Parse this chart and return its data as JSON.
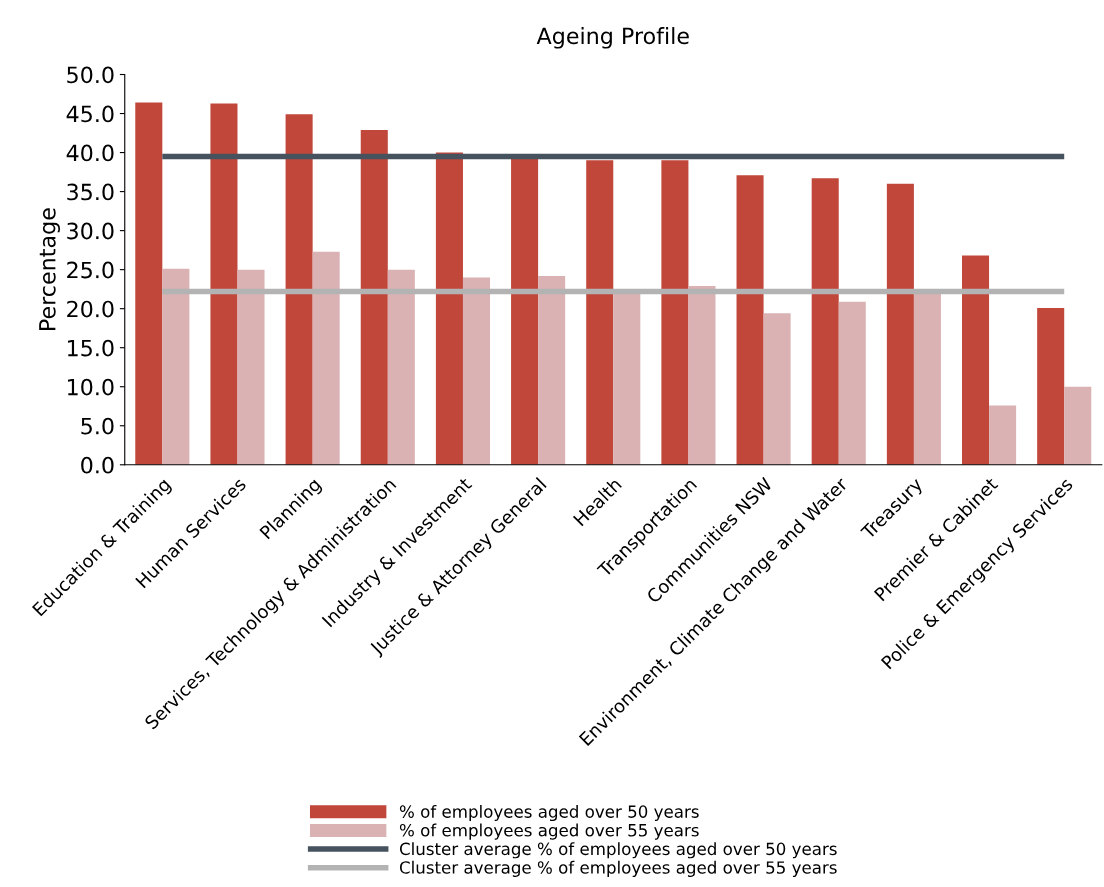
{
  "chart_data": {
    "type": "bar",
    "title": "Ageing Profile",
    "ylabel": "Percentage",
    "categories": [
      "Education & Training",
      "Human Services",
      "Planning",
      "Services, Technology & Administration",
      "Industry & Investment",
      "Justice & Attorney General",
      "Health",
      "Transportation",
      "Communities NSW",
      "Environment, Climate Change and Water",
      "Treasury",
      "Premier & Cabinet",
      "Police & Emergency Services"
    ],
    "series": [
      {
        "name": "% of employees aged over 50 years",
        "color": "#c0473a",
        "values": [
          46.4,
          46.3,
          44.9,
          42.9,
          40.0,
          39.5,
          39.0,
          39.0,
          37.1,
          36.7,
          36.0,
          26.8,
          20.1
        ]
      },
      {
        "name": "% of employees aged over 55 years",
        "color": "#dbb2b3",
        "values": [
          25.1,
          25.0,
          27.3,
          25.0,
          24.0,
          24.2,
          22.0,
          22.9,
          19.4,
          20.9,
          22.2,
          7.6,
          10.0
        ]
      }
    ],
    "ref_lines": [
      {
        "axis": "y",
        "value": 39.5,
        "label": "Cluster average % of employees aged over 50 years",
        "color": "#46525e"
      },
      {
        "axis": "y",
        "value": 22.2,
        "label": "Cluster average % of employees aged over 55 years",
        "color": "#b3b3b3"
      }
    ],
    "ylim": [
      0,
      50
    ],
    "yticks": [
      {
        "value": 0,
        "label": "0.0"
      },
      {
        "value": 5,
        "label": "5.0"
      },
      {
        "value": 10,
        "label": "10.0"
      },
      {
        "value": 15,
        "label": "15.0"
      },
      {
        "value": 20,
        "label": "20.0"
      },
      {
        "value": 25,
        "label": "25.0"
      },
      {
        "value": 30,
        "label": "30.0"
      },
      {
        "value": 35,
        "label": "35.0"
      },
      {
        "value": 40,
        "label": "40.0"
      },
      {
        "value": 45,
        "label": "45.0"
      },
      {
        "value": 50,
        "label": "50.0"
      }
    ],
    "legend": "bottom"
  }
}
